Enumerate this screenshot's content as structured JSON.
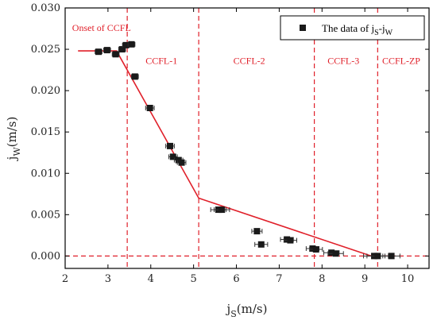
{
  "chart_data": {
    "type": "scatter",
    "xlabel": {
      "base": "j",
      "sub": "S",
      "unit": "(m/s)"
    },
    "ylabel": {
      "base": "j",
      "sub": "W",
      "unit": "(m/s)"
    },
    "xlim": [
      2,
      10.5
    ],
    "ylim": [
      -0.0015,
      0.03
    ],
    "x_ticks": [
      "2",
      "3",
      "4",
      "5",
      "6",
      "7",
      "8",
      "9",
      "10"
    ],
    "y_ticks": [
      "0.000",
      "0.005",
      "0.010",
      "0.015",
      "0.020",
      "0.025",
      "0.030"
    ],
    "legend": {
      "label_prefix": "The data of j",
      "sub1": "S",
      "dash": "-j",
      "sub2": "W",
      "placement": "top-right"
    },
    "points": [
      {
        "x": 2.78,
        "y": 0.0247,
        "xerr": 0.08
      },
      {
        "x": 2.98,
        "y": 0.0249,
        "xerr": 0.08
      },
      {
        "x": 3.18,
        "y": 0.0244,
        "xerr": 0.08
      },
      {
        "x": 3.33,
        "y": 0.025,
        "xerr": 0.08
      },
      {
        "x": 3.42,
        "y": 0.0255,
        "xerr": 0.08
      },
      {
        "x": 3.55,
        "y": 0.0256,
        "xerr": 0.08
      },
      {
        "x": 3.63,
        "y": 0.0217,
        "xerr": 0.08
      },
      {
        "x": 3.98,
        "y": 0.0179,
        "xerr": 0.1
      },
      {
        "x": 4.45,
        "y": 0.0133,
        "xerr": 0.1
      },
      {
        "x": 4.52,
        "y": 0.012,
        "xerr": 0.1
      },
      {
        "x": 4.65,
        "y": 0.0116,
        "xerr": 0.1
      },
      {
        "x": 4.72,
        "y": 0.0113,
        "xerr": 0.1
      },
      {
        "x": 5.58,
        "y": 0.0056,
        "xerr": 0.18
      },
      {
        "x": 5.66,
        "y": 0.0056,
        "xerr": 0.18
      },
      {
        "x": 6.48,
        "y": 0.003,
        "xerr": 0.12
      },
      {
        "x": 6.58,
        "y": 0.0014,
        "xerr": 0.15
      },
      {
        "x": 7.18,
        "y": 0.002,
        "xerr": 0.15
      },
      {
        "x": 7.26,
        "y": 0.0019,
        "xerr": 0.15
      },
      {
        "x": 7.78,
        "y": 0.0009,
        "xerr": 0.15
      },
      {
        "x": 7.86,
        "y": 0.0008,
        "xerr": 0.15
      },
      {
        "x": 8.22,
        "y": 0.0004,
        "xerr": 0.18
      },
      {
        "x": 8.32,
        "y": 0.0003,
        "xerr": 0.18
      },
      {
        "x": 9.22,
        "y": 0.0,
        "xerr": 0.25
      },
      {
        "x": 9.3,
        "y": 0.0,
        "xerr": 0.25
      },
      {
        "x": 9.62,
        "y": 0.0,
        "xerr": 0.2
      }
    ],
    "fit_line": [
      {
        "x": 2.3,
        "y": 0.0248
      },
      {
        "x": 3.2,
        "y": 0.0248
      },
      {
        "x": 5.12,
        "y": 0.007
      },
      {
        "x": 9.15,
        "y": 0.0
      }
    ],
    "region_lines_x": [
      3.45,
      5.12,
      7.82,
      9.3
    ],
    "zero_line_y": 0.0,
    "region_labels": [
      {
        "text": "Onset of CCFL",
        "x": 2.85,
        "y": 0.0275
      },
      {
        "text": "CCFL-1",
        "x": 4.25,
        "y": 0.0235
      },
      {
        "text": "CCFL-2",
        "x": 6.3,
        "y": 0.0235
      },
      {
        "text": "CCFL-3",
        "x": 8.5,
        "y": 0.0235
      },
      {
        "text": "CCFL-ZP",
        "x": 9.85,
        "y": 0.0235
      }
    ],
    "colors": {
      "fit_line": "#e0202a",
      "region_lines": "#e0202a",
      "region_text": "#e0202a",
      "markers": "#1a1a1a",
      "axes": "#000000"
    }
  }
}
